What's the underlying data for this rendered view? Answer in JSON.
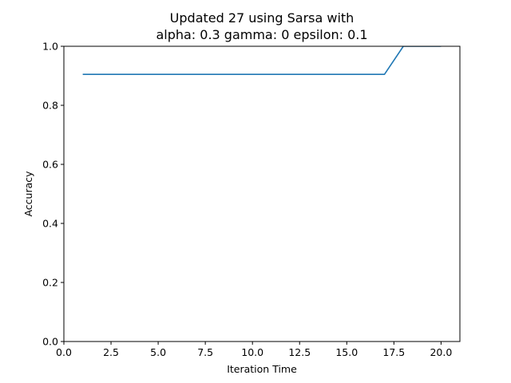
{
  "chart_data": {
    "type": "line",
    "title_line1": "Updated 27 using Sarsa with",
    "title_line2": "alpha: 0.3 gamma: 0 epsilon: 0.1",
    "xlabel": "Iteration Time",
    "ylabel": "Accuracy",
    "xlim": [
      0,
      21
    ],
    "ylim": [
      0,
      1
    ],
    "xticks": [
      0,
      2.5,
      5,
      7.5,
      10,
      12.5,
      15,
      17.5,
      20
    ],
    "xtick_labels": [
      "0.0",
      "2.5",
      "5.0",
      "7.5",
      "10.0",
      "12.5",
      "15.0",
      "17.5",
      "20.0"
    ],
    "yticks": [
      0,
      0.2,
      0.4,
      0.6,
      0.8,
      1.0
    ],
    "ytick_labels": [
      "0.0",
      "0.2",
      "0.4",
      "0.6",
      "0.8",
      "1.0"
    ],
    "grid": false,
    "series": [
      {
        "color": "#1f77b4",
        "x": [
          1,
          2,
          3,
          4,
          5,
          6,
          7,
          8,
          9,
          10,
          11,
          12,
          13,
          14,
          15,
          16,
          17,
          18,
          19,
          20
        ],
        "y": [
          0.905,
          0.905,
          0.905,
          0.905,
          0.905,
          0.905,
          0.905,
          0.905,
          0.905,
          0.905,
          0.905,
          0.905,
          0.905,
          0.905,
          0.905,
          0.905,
          0.905,
          1.0,
          1.0,
          1.0
        ]
      }
    ]
  }
}
